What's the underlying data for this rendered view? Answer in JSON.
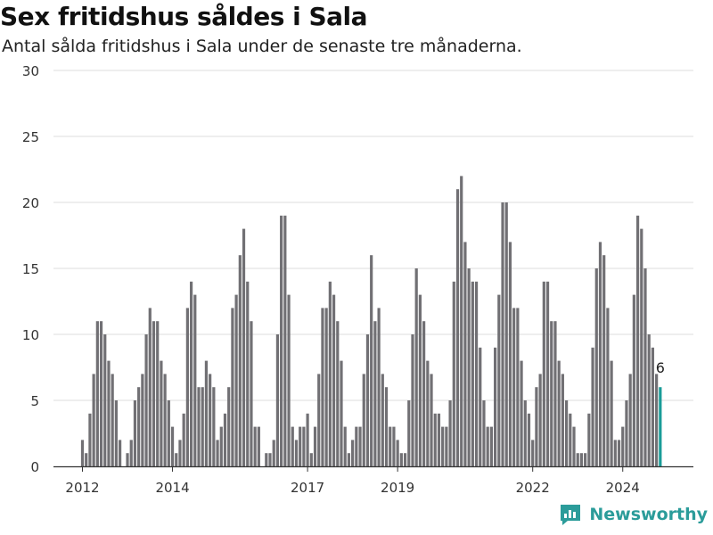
{
  "header": {
    "title": "Sex fritidshus såldes i Sala",
    "subtitle": "Antal sålda fritidshus i Sala under de senaste tre månaderna."
  },
  "brand": {
    "name": "Newsworthy",
    "icon": "newsworthy-logo-icon"
  },
  "colors": {
    "bar": "#717074",
    "highlight": "#1a9c98",
    "grid": "#dddddd",
    "axis": "#333333"
  },
  "chart_data": {
    "type": "bar",
    "title": "Sex fritidshus såldes i Sala",
    "subtitle": "Antal sålda fritidshus i Sala under de senaste tre månaderna.",
    "xlabel": "",
    "ylabel": "",
    "ylim": [
      0,
      30
    ],
    "yticks": [
      0,
      5,
      10,
      15,
      20,
      25,
      30
    ],
    "xticks": [
      "2012",
      "2014",
      "2017",
      "2019",
      "2022",
      "2024"
    ],
    "grid": true,
    "start": "2012-01",
    "values": [
      2,
      1,
      4,
      7,
      11,
      11,
      10,
      8,
      7,
      5,
      2,
      0,
      1,
      2,
      5,
      6,
      7,
      10,
      12,
      11,
      11,
      8,
      7,
      5,
      3,
      1,
      2,
      4,
      12,
      14,
      13,
      6,
      6,
      8,
      7,
      6,
      2,
      3,
      4,
      6,
      12,
      13,
      16,
      18,
      14,
      11,
      3,
      3,
      0,
      1,
      1,
      2,
      10,
      19,
      19,
      13,
      3,
      2,
      3,
      3,
      4,
      1,
      3,
      7,
      12,
      12,
      14,
      13,
      11,
      8,
      3,
      1,
      2,
      3,
      3,
      7,
      10,
      16,
      11,
      12,
      7,
      6,
      3,
      3,
      2,
      1,
      1,
      5,
      10,
      15,
      13,
      11,
      8,
      7,
      4,
      4,
      3,
      3,
      5,
      14,
      21,
      22,
      17,
      15,
      14,
      14,
      9,
      5,
      3,
      3,
      9,
      13,
      20,
      20,
      17,
      12,
      12,
      8,
      5,
      4,
      2,
      6,
      7,
      14,
      14,
      11,
      11,
      8,
      7,
      5,
      4,
      3,
      1,
      1,
      1,
      4,
      9,
      15,
      17,
      16,
      12,
      8,
      2,
      2,
      3,
      5,
      7,
      13,
      19,
      18,
      15,
      10,
      9,
      7,
      6
    ],
    "highlight_last": true,
    "annotation": "6"
  }
}
